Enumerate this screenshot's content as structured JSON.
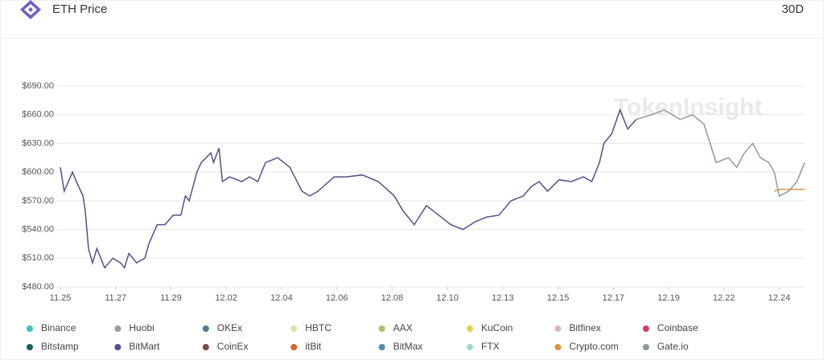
{
  "header": {
    "title": "ETH Price",
    "range": "30D"
  },
  "chart_data": {
    "type": "line",
    "watermark": "TokenInsight",
    "ylim": [
      480,
      690
    ],
    "yticks": [
      {
        "value": 480,
        "label": "$480.00"
      },
      {
        "value": 510,
        "label": "$510.00"
      },
      {
        "value": 540,
        "label": "$540.00"
      },
      {
        "value": 570,
        "label": "$570.00"
      },
      {
        "value": 600,
        "label": "$600.00"
      },
      {
        "value": 630,
        "label": "$630.00"
      },
      {
        "value": 660,
        "label": "$660.00"
      },
      {
        "value": 690,
        "label": "$690.00"
      }
    ],
    "xlim": [
      0,
      13.46
    ],
    "xticks": [
      {
        "value": 0,
        "label": "11.25"
      },
      {
        "value": 1,
        "label": "11.27"
      },
      {
        "value": 2,
        "label": "11.29"
      },
      {
        "value": 3,
        "label": "12.02"
      },
      {
        "value": 4,
        "label": "12.04"
      },
      {
        "value": 5,
        "label": "12.06"
      },
      {
        "value": 6,
        "label": "12.08"
      },
      {
        "value": 7,
        "label": "12.10"
      },
      {
        "value": 8,
        "label": "12.13"
      },
      {
        "value": 9,
        "label": "12.15"
      },
      {
        "value": 10,
        "label": "12.17"
      },
      {
        "value": 11,
        "label": "12.19"
      },
      {
        "value": 12,
        "label": "12.22"
      },
      {
        "value": 13,
        "label": "12.24"
      }
    ],
    "grid": true,
    "series": [
      {
        "name": "Binance",
        "color": "#3cc3c6"
      },
      {
        "name": "Huobi",
        "color": "#9a9a9a"
      },
      {
        "name": "OKEx",
        "color": "#4b7d8e"
      },
      {
        "name": "HBTC",
        "color": "#e8dcae"
      },
      {
        "name": "AAX",
        "color": "#a6c46c"
      },
      {
        "name": "KuCoin",
        "color": "#e8d24c"
      },
      {
        "name": "Bitfinex",
        "color": "#d8b6c2"
      },
      {
        "name": "Coinbase",
        "color": "#d83c6c"
      },
      {
        "name": "Bitstamp",
        "color": "#1f5e5e"
      },
      {
        "name": "BitMart",
        "color": "#5b4b8c",
        "x": [
          0,
          0.07,
          0.22,
          0.29,
          0.41,
          0.45,
          0.51,
          0.58,
          0.66,
          0.8,
          0.95,
          1.09,
          1.16,
          1.24,
          1.38,
          1.53,
          1.6,
          1.75,
          1.89,
          2.04,
          2.18,
          2.26,
          2.33,
          2.47,
          2.55,
          2.72,
          2.77,
          2.87,
          2.93,
          3.06,
          3.28,
          3.42,
          3.57,
          3.71,
          3.93,
          4.15,
          4.37,
          4.51,
          4.66,
          4.95,
          5.17,
          5.46,
          5.75,
          6.04,
          6.19,
          6.4,
          6.62,
          6.84,
          7.06,
          7.28,
          7.5,
          7.71,
          7.93,
          8.15,
          8.37,
          8.52,
          8.66,
          8.81,
          9.02,
          9.24,
          9.46,
          9.61,
          9.75,
          9.83,
          9.97,
          10.12,
          10.26,
          10.41
        ],
        "values": [
          605,
          580,
          600,
          590,
          575,
          560,
          520,
          505,
          520,
          500,
          510,
          505,
          500,
          515,
          505,
          510,
          525,
          545,
          545,
          555,
          555,
          575,
          570,
          600,
          610,
          620,
          610,
          625,
          590,
          595,
          590,
          595,
          590,
          610,
          615,
          605,
          580,
          575,
          580,
          595,
          595,
          597,
          590,
          575,
          560,
          545,
          565,
          555,
          545,
          540,
          548,
          553,
          555,
          570,
          575,
          585,
          590,
          580,
          592,
          590,
          595,
          590,
          610,
          630,
          640,
          665,
          645,
          655
        ]
      },
      {
        "name": "CoinEx",
        "color": "#7b4a4a"
      },
      {
        "name": "itBit",
        "color": "#e06232"
      },
      {
        "name": "BitMax",
        "color": "#4b8bb2"
      },
      {
        "name": "FTX",
        "color": "#a2d8ca"
      },
      {
        "name": "Crypto.com",
        "color": "#e0943c",
        "x": [
          12.91,
          13.0,
          13.17,
          13.46
        ],
        "values": [
          580,
          582,
          582,
          582
        ]
      },
      {
        "name": "Gate.io",
        "color": "#8b9b9b",
        "x": [
          10.41,
          10.7,
          10.92,
          11.21,
          11.43,
          11.64,
          11.86,
          12.08,
          12.23,
          12.37,
          12.52,
          12.66,
          12.81,
          12.91,
          13.0,
          13.17,
          13.32,
          13.46
        ],
        "values": [
          655,
          660,
          665,
          655,
          660,
          650,
          610,
          615,
          605,
          620,
          630,
          615,
          610,
          600,
          575,
          580,
          590,
          610
        ]
      }
    ]
  }
}
